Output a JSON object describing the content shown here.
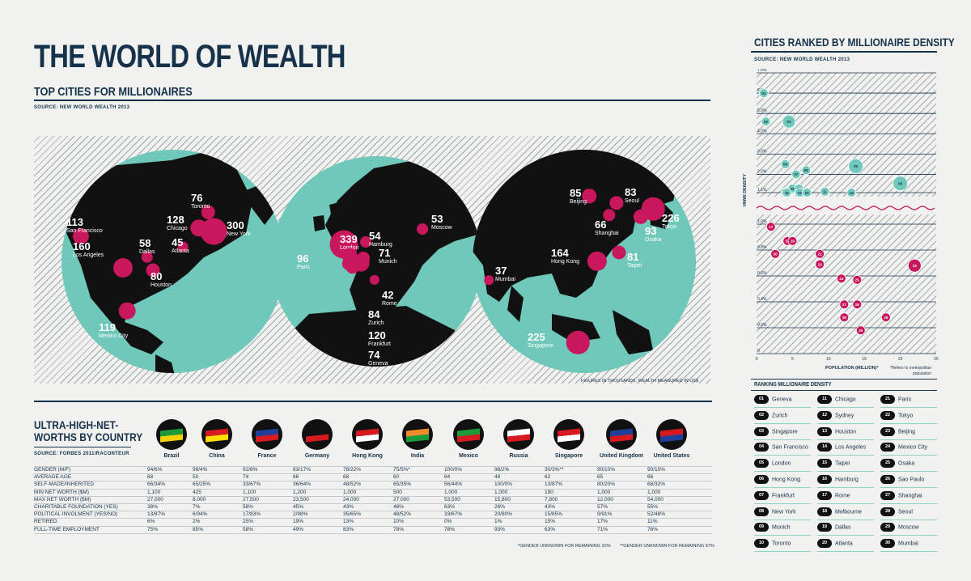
{
  "title": "THE WORLD OF WEALTH",
  "subtitle": "TOP CITIES FOR MILLIONAIRES",
  "source_map": "SOURCE: NEW WORLD WEALTH 2013",
  "map_note": "FIGURES IN THOUSANDS, WEALTH MEASURED IN US$",
  "cities": [
    {
      "value": "113",
      "name": "San Francisco"
    },
    {
      "value": "160",
      "name": "Los Angeles"
    },
    {
      "value": "58",
      "name": "Dallas"
    },
    {
      "value": "80",
      "name": "Houston"
    },
    {
      "value": "128",
      "name": "Chicago"
    },
    {
      "value": "76",
      "name": "Toronto"
    },
    {
      "value": "45",
      "name": "Atlanta"
    },
    {
      "value": "300",
      "name": "New York"
    },
    {
      "value": "119",
      "name": "Mexico City"
    },
    {
      "value": "339",
      "name": "London"
    },
    {
      "value": "54",
      "name": "Hamburg"
    },
    {
      "value": "96",
      "name": "Paris"
    },
    {
      "value": "71",
      "name": "Munich"
    },
    {
      "value": "42",
      "name": "Rome"
    },
    {
      "value": "84",
      "name": "Zurich"
    },
    {
      "value": "120",
      "name": "Frankfurt"
    },
    {
      "value": "74",
      "name": "Geneva"
    },
    {
      "value": "53",
      "name": "Moscow"
    },
    {
      "value": "37",
      "name": "Mumbai"
    },
    {
      "value": "85",
      "name": "Beijing"
    },
    {
      "value": "83",
      "name": "Seoul"
    },
    {
      "value": "66",
      "name": "Shanghai"
    },
    {
      "value": "226",
      "name": "Tokyo"
    },
    {
      "value": "93",
      "name": "Osaka"
    },
    {
      "value": "164",
      "name": "Hong Kong"
    },
    {
      "value": "81",
      "name": "Taipei"
    },
    {
      "value": "225",
      "name": "Singapore"
    }
  ],
  "uhnw": {
    "title_line1": "ULTRA-HIGH-NET-",
    "title_line2": "WORTHS BY COUNTRY",
    "source": "SOURCE: FORBES 2011/RACONTEUR",
    "countries": [
      "Brazil",
      "China",
      "France",
      "Germany",
      "Hong Kong",
      "India",
      "Mexico",
      "Russia",
      "Singapore",
      "United Kingdom",
      "United States"
    ],
    "rows": [
      {
        "label": "GENDER (M/F)",
        "values": [
          "94/6%",
          "96/4%",
          "92/8%",
          "83/17%",
          "78/22%",
          "75/5%*",
          "100/0%",
          "98/2%",
          "30/3%**",
          "90/10%",
          "90/10%"
        ]
      },
      {
        "label": "AVERAGE AGE",
        "values": [
          "68",
          "50",
          "74",
          "66",
          "68",
          "60",
          "64",
          "49",
          "62",
          "65",
          "66"
        ]
      },
      {
        "label": "SELF-MADE/INHERITED",
        "values": [
          "66/34%",
          "65/25%",
          "33/67%",
          "36/64%",
          "48/52%",
          "65/35%",
          "56/44%",
          "100/0%",
          "13/87%",
          "80/20%",
          "68/32%"
        ]
      },
      {
        "label": "MIN NET WORTH ($M)",
        "values": [
          "1,100",
          "425",
          "1,100",
          "1,200",
          "1,000",
          "500",
          "1,000",
          "1,000",
          "190",
          "1,000",
          "1,000"
        ]
      },
      {
        "label": "MAX NET WORTH ($M)",
        "values": [
          "27,000",
          "8,000",
          "27,500",
          "23,500",
          "24,000",
          "27,000",
          "53,500",
          "15,800",
          "7,800",
          "12,000",
          "54,000"
        ]
      },
      {
        "label": "CHARITABLE FOUNDATION (YES)",
        "values": [
          "38%",
          "7%",
          "58%",
          "45%",
          "43%",
          "48%",
          "63%",
          "26%",
          "43%",
          "57%",
          "55%"
        ]
      },
      {
        "label": "POLITICAL INVOLMENT (YES/NO)",
        "values": [
          "13/87%",
          "6/94%",
          "17/83%",
          "2/98%",
          "35/65%",
          "48/52%",
          "33/67%",
          "20/80%",
          "15/85%",
          "9/91%",
          "52/48%"
        ]
      },
      {
        "label": "RETIRED",
        "values": [
          "6%",
          "2%",
          "25%",
          "19%",
          "13%",
          "10%",
          "0%",
          "1%",
          "15%",
          "17%",
          "11%"
        ]
      },
      {
        "label": "FULL-TIME EMPLOYMENT",
        "values": [
          "75%",
          "85%",
          "58%",
          "49%",
          "83%",
          "78%",
          "78%",
          "93%",
          "63%",
          "71%",
          "76%"
        ]
      }
    ],
    "footnote1": "*GENDER UNKNOWN FOR REMAINING 20%",
    "footnote2": "**GENDER UNKNOWN FOR REMAINING 67%"
  },
  "density": {
    "title": "CITIES RANKED BY MILLIONAIRE DENSITY",
    "source": "SOURCE: NEW WORLD WEALTH 2013",
    "ylabel": "HNWI DENSITY",
    "xlabel": "POPULATION (MILLION)*",
    "note_line1": "*Refers to metropolitan",
    "note_line2": "population",
    "upper_ticks": [
      "7.0%",
      "6.0%",
      "5.0%",
      "4.0%",
      "3.0%",
      "2.0%",
      "1.1%"
    ],
    "lower_ticks": [
      "1.0%",
      "0.8%",
      "0.6%",
      "0.4%",
      "0.2%",
      "0"
    ],
    "x_ticks": [
      "0",
      "5",
      "10",
      "15",
      "20",
      "25"
    ]
  },
  "chart_data": {
    "type": "scatter",
    "title": "CITIES RANKED BY MILLIONAIRE DENSITY",
    "xlabel": "POPULATION (MILLION)*",
    "ylabel": "HNWI DENSITY",
    "xlim": [
      0,
      25
    ],
    "ylim": [
      0,
      7.0
    ],
    "y_scale": "broken axis: 0–1.0% and 1.1–7.0%",
    "points": [
      {
        "rank": 1,
        "x": 1.0,
        "y": 6.0
      },
      {
        "rank": 2,
        "x": 1.3,
        "y": 4.6
      },
      {
        "rank": 3,
        "x": 4.5,
        "y": 4.6
      },
      {
        "rank": 4,
        "x": 4.0,
        "y": 2.5
      },
      {
        "rank": 5,
        "x": 13.8,
        "y": 2.4
      },
      {
        "rank": 6,
        "x": 6.9,
        "y": 2.2
      },
      {
        "rank": 7,
        "x": 5.5,
        "y": 2.0
      },
      {
        "rank": 8,
        "x": 20.0,
        "y": 1.55
      },
      {
        "rank": 9,
        "x": 5.0,
        "y": 1.3
      },
      {
        "rank": 10,
        "x": 5.9,
        "y": 1.3
      },
      {
        "rank": 11,
        "x": 9.5,
        "y": 1.15
      },
      {
        "rank": 12,
        "x": 4.0,
        "y": 1.12
      },
      {
        "rank": 13,
        "x": 6.0,
        "y": 1.1
      },
      {
        "rank": 14,
        "x": 13.2,
        "y": 1.1
      },
      {
        "rank": 15,
        "x": 7.0,
        "y": 1.1
      },
      {
        "rank": 16,
        "x": 4.2,
        "y": 1.1
      },
      {
        "rank": 17,
        "x": 2.0,
        "y": 0.98
      },
      {
        "rank": 18,
        "x": 4.3,
        "y": 0.87
      },
      {
        "rank": 19,
        "x": 5.0,
        "y": 0.87
      },
      {
        "rank": 20,
        "x": 2.6,
        "y": 0.77
      },
      {
        "rank": 21,
        "x": 8.8,
        "y": 0.77
      },
      {
        "rank": 22,
        "x": 22.0,
        "y": 0.68
      },
      {
        "rank": 23,
        "x": 8.8,
        "y": 0.69
      },
      {
        "rank": 24,
        "x": 11.8,
        "y": 0.58
      },
      {
        "rank": 25,
        "x": 14.0,
        "y": 0.57
      },
      {
        "rank": 26,
        "x": 14.0,
        "y": 0.38
      },
      {
        "rank": 27,
        "x": 12.2,
        "y": 0.38
      },
      {
        "rank": 28,
        "x": 18.0,
        "y": 0.28
      },
      {
        "rank": 29,
        "x": 12.2,
        "y": 0.28
      },
      {
        "rank": 30,
        "x": 14.5,
        "y": 0.18
      }
    ]
  },
  "ranking": {
    "title": "RANKING MILLIONAIRE DENSITY",
    "items": [
      {
        "n": "01",
        "city": "Geneva"
      },
      {
        "n": "02",
        "city": "Zurich"
      },
      {
        "n": "03",
        "city": "Singapore"
      },
      {
        "n": "04",
        "city": "San Francisco"
      },
      {
        "n": "05",
        "city": "London"
      },
      {
        "n": "06",
        "city": "Hong Kong"
      },
      {
        "n": "07",
        "city": "Frankfurt"
      },
      {
        "n": "08",
        "city": "New York"
      },
      {
        "n": "09",
        "city": "Munich"
      },
      {
        "n": "10",
        "city": "Toronto"
      },
      {
        "n": "11",
        "city": "Chicago"
      },
      {
        "n": "12",
        "city": "Sydney"
      },
      {
        "n": "13",
        "city": "Houston"
      },
      {
        "n": "14",
        "city": "Los Angeles"
      },
      {
        "n": "15",
        "city": "Taipei"
      },
      {
        "n": "16",
        "city": "Hamburg"
      },
      {
        "n": "17",
        "city": "Rome"
      },
      {
        "n": "18",
        "city": "Melbourne"
      },
      {
        "n": "19",
        "city": "Dallas"
      },
      {
        "n": "20",
        "city": "Atlanta"
      },
      {
        "n": "21",
        "city": "Paris"
      },
      {
        "n": "22",
        "city": "Tokyo"
      },
      {
        "n": "23",
        "city": "Beijing"
      },
      {
        "n": "24",
        "city": "Mexico City"
      },
      {
        "n": "25",
        "city": "Osaka"
      },
      {
        "n": "26",
        "city": "Sao Paulo"
      },
      {
        "n": "27",
        "city": "Shanghai"
      },
      {
        "n": "28",
        "city": "Seoul"
      },
      {
        "n": "29",
        "city": "Moscow"
      },
      {
        "n": "30",
        "city": "Mumbai"
      }
    ]
  },
  "colors": {
    "navy": "#16324a",
    "teal": "#6fc8ba",
    "magenta": "#c8175d",
    "land": "#111111"
  }
}
